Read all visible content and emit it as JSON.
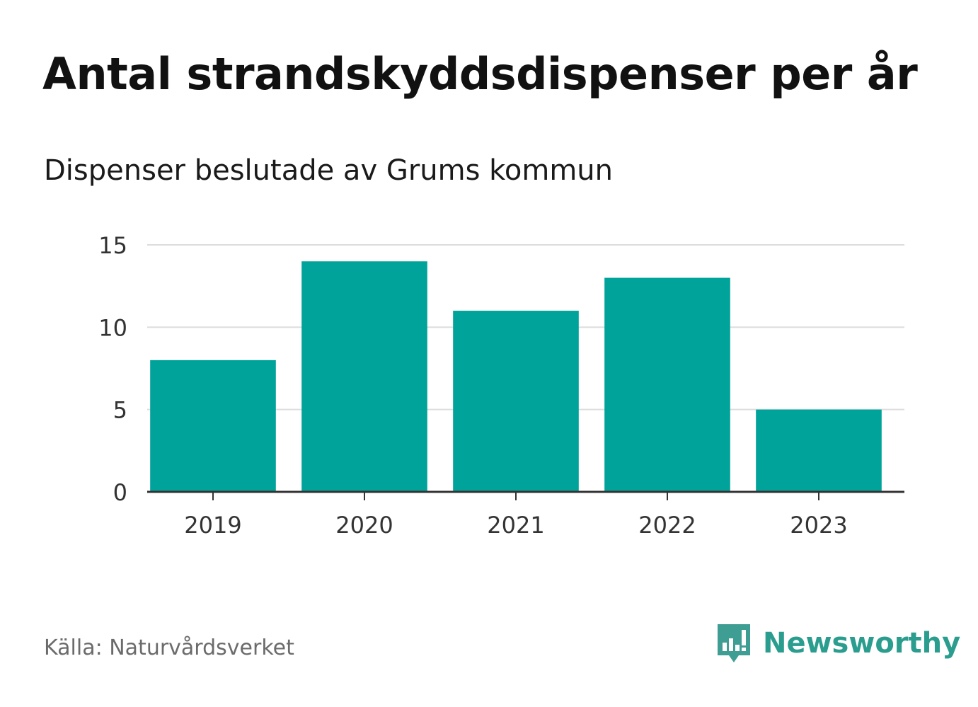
{
  "chart_data": {
    "type": "bar",
    "title": "Antal strandskyddsdispenser per år",
    "subtitle": "Dispenser beslutade av Grums kommun",
    "categories": [
      "2019",
      "2020",
      "2021",
      "2022",
      "2023"
    ],
    "values": [
      8,
      14,
      11,
      13,
      5
    ],
    "xlabel": "",
    "ylabel": "",
    "ylim": [
      0,
      15
    ],
    "yticks": [
      0,
      5,
      10,
      15
    ],
    "grid": true,
    "bar_color": "#00a39a"
  },
  "footer": {
    "source": "Källa: Naturvårdsverket",
    "brand": "Newsworthy",
    "brand_color": "#2a9d8f"
  }
}
